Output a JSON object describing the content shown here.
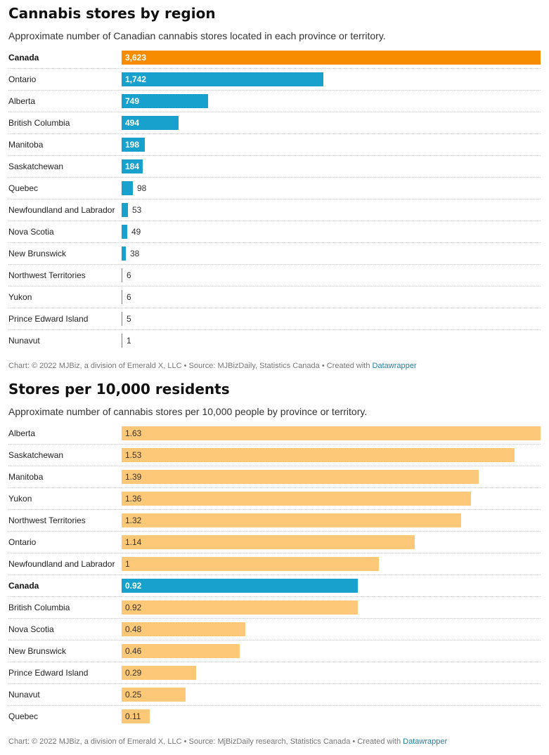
{
  "charts": [
    {
      "title": "Cannabis stores by region",
      "subtitle": "Approximate number of Canadian cannabis stores located in each province or territory.",
      "footer_prefix": "Chart: © 2022 MJBiz, a division of Emerald X, LLC • Source: MJBizDaily, Statistics Canada • Created with ",
      "footer_link": "Datawrapper"
    },
    {
      "title": "Stores per 10,000 residents",
      "subtitle": "Approximate number of cannabis stores per 10,000 people by province or territory.",
      "footer_prefix": "Chart: © 2022 MJBiz, a division of Emerald X, LLC • Source: MjBizDaily research, Statistics Canada  • Created with ",
      "footer_link": "Datawrapper"
    }
  ],
  "colors": {
    "highlight_orange": "#f78c00",
    "blue": "#18a1cd",
    "light_orange": "#fdc978",
    "highlight_blue": "#18a1cd"
  },
  "chart_data": [
    {
      "type": "bar",
      "orientation": "horizontal",
      "title": "Cannabis stores by region",
      "subtitle": "Approximate number of Canadian cannabis stores located in each province or territory.",
      "categories": [
        "Canada",
        "Ontario",
        "Alberta",
        "British Columbia",
        "Manitoba",
        "Saskatchewan",
        "Quebec",
        "Newfoundland and Labrador",
        "Nova Scotia",
        "New Brunswick",
        "Northwest Territories",
        "Yukon",
        "Prince Edward Island",
        "Nunavut"
      ],
      "values": [
        3623,
        1742,
        749,
        494,
        198,
        184,
        98,
        53,
        49,
        38,
        6,
        6,
        5,
        1
      ],
      "labels": [
        "3,623",
        "1,742",
        "749",
        "494",
        "198",
        "184",
        "98",
        "53",
        "49",
        "38",
        "6",
        "6",
        "5",
        "1"
      ],
      "highlight": [
        "Canada"
      ],
      "xlim": [
        0,
        3623
      ],
      "grid": false
    },
    {
      "type": "bar",
      "orientation": "horizontal",
      "title": "Stores per 10,000 residents",
      "subtitle": "Approximate number of cannabis stores per 10,000 people by province or territory.",
      "categories": [
        "Alberta",
        "Saskatchewan",
        "Manitoba",
        "Yukon",
        "Northwest Territories",
        "Ontario",
        "Newfoundland and Labrador",
        "Canada",
        "British Columbia",
        "Nova Scotia",
        "New Brunswick",
        "Prince Edward Island",
        "Nunavut",
        "Quebec"
      ],
      "values": [
        1.63,
        1.53,
        1.39,
        1.36,
        1.32,
        1.14,
        1,
        0.92,
        0.92,
        0.48,
        0.46,
        0.29,
        0.25,
        0.11
      ],
      "labels": [
        "1.63",
        "1.53",
        "1.39",
        "1.36",
        "1.32",
        "1.14",
        "1",
        "0.92",
        "0.92",
        "0.48",
        "0.46",
        "0.29",
        "0.25",
        "0.11"
      ],
      "highlight": [
        "Canada"
      ],
      "xlim": [
        0,
        1.63
      ],
      "grid": false
    }
  ]
}
